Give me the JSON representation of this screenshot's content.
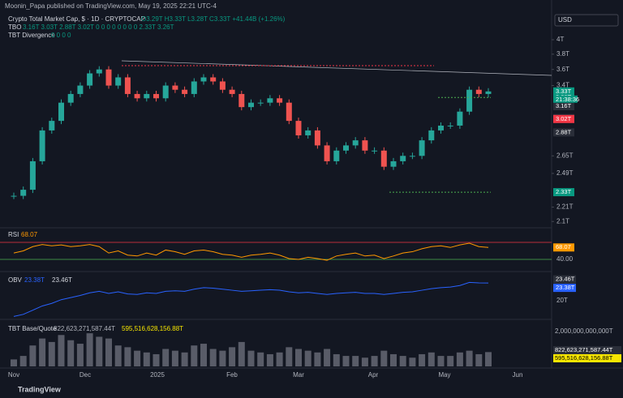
{
  "header": {
    "publisher": "Moonin_Papa published on TradingView.com, May 19, 2025 22:21 UTC-4",
    "symbol": "Crypto Total Market Cap, $ · 1D · CRYPTOCAP",
    "ohlc": "O3.29T H3.33T L3.28T C3.33T +41.44B (+1.26%)",
    "tbo_name": "TBO",
    "tbo_values": "3.16T 3.03T 2.88T 3.02T 0 0 0 0 0 0 0 0 2.33T 3.26T",
    "div_name": "TBT Divergence",
    "div_values": "0 0 0 0",
    "currency": "USD"
  },
  "price": {
    "ticks": [
      {
        "value": 4,
        "label": "4T"
      },
      {
        "value": 3.8,
        "label": "3.8T"
      },
      {
        "value": 3.6,
        "label": "3.6T"
      },
      {
        "value": 3.4,
        "label": "3.4T"
      },
      {
        "value": 2.65,
        "label": "2.65T"
      },
      {
        "value": 2.49,
        "label": "2.49T"
      },
      {
        "value": 2.21,
        "label": "2.21T"
      },
      {
        "value": 2.1,
        "label": "2.1T"
      }
    ],
    "closes": [
      2.3,
      2.35,
      2.6,
      2.9,
      3.0,
      3.2,
      3.3,
      3.4,
      3.55,
      3.6,
      3.4,
      3.5,
      3.3,
      3.25,
      3.3,
      3.25,
      3.4,
      3.35,
      3.3,
      3.45,
      3.5,
      3.45,
      3.35,
      3.3,
      3.15,
      3.2,
      3.2,
      3.25,
      3.2,
      3.0,
      2.85,
      2.9,
      2.75,
      2.6,
      2.7,
      2.75,
      2.8,
      2.7,
      2.7,
      2.55,
      2.6,
      2.65,
      2.65,
      2.8,
      2.9,
      2.95,
      2.95,
      3.1,
      3.35,
      3.3,
      3.33
    ],
    "labels": [
      {
        "value": 3.33,
        "label": "3.33T",
        "color": "#089981"
      },
      {
        "value": 3.26,
        "label": "3.26T",
        "color": "#089981"
      },
      {
        "value": 3.16,
        "label": "3.16T",
        "color": "#2a2e39"
      },
      {
        "value": 3.03,
        "label": "3.03T",
        "color": "#2a2e39"
      },
      {
        "value": 3.02,
        "label": "3.02T",
        "color": "#f23645"
      },
      {
        "value": 2.88,
        "label": "2.88T",
        "color": "#2a2e39"
      },
      {
        "value": 2.33,
        "label": "2.33T",
        "color": "#089981"
      }
    ],
    "countdown": "21:38:36"
  },
  "rsi": {
    "name": "RSI",
    "value_label": "68.07",
    "ticks": [
      {
        "value": 40,
        "label": "40.00"
      }
    ],
    "upper": 80,
    "values": [
      55,
      60,
      70,
      75,
      72,
      74,
      70,
      72,
      75,
      70,
      55,
      60,
      50,
      48,
      55,
      50,
      62,
      58,
      52,
      60,
      62,
      58,
      52,
      50,
      45,
      50,
      52,
      55,
      50,
      42,
      40,
      45,
      42,
      38,
      48,
      52,
      55,
      48,
      50,
      42,
      48,
      55,
      58,
      65,
      70,
      72,
      68,
      74,
      78,
      70,
      68.07
    ]
  },
  "obv": {
    "name": "OBV",
    "value1": "23.38T",
    "value2": "23.46T",
    "ticks": [
      {
        "value": 20,
        "label": "20T"
      }
    ],
    "values": [
      17.0,
      17.4,
      18.2,
      19.0,
      19.5,
      20.2,
      20.6,
      21.0,
      21.5,
      21.8,
      21.4,
      21.7,
      21.3,
      21.2,
      21.5,
      21.4,
      21.8,
      21.9,
      21.8,
      22.2,
      22.5,
      22.4,
      22.2,
      22.0,
      21.8,
      21.9,
      22.0,
      22.1,
      22.0,
      21.7,
      21.5,
      21.6,
      21.4,
      21.2,
      21.4,
      21.5,
      21.6,
      21.4,
      21.4,
      21.2,
      21.4,
      21.6,
      21.7,
      22.0,
      22.3,
      22.5,
      22.6,
      22.9,
      23.5,
      23.4,
      23.38
    ],
    "labels": [
      {
        "value": 23.46,
        "label": "23.46T",
        "color": "#2a2e39"
      },
      {
        "value": 23.38,
        "label": "23.38T",
        "color": "#2962ff"
      }
    ]
  },
  "volume": {
    "name": "TBT Base/Quote",
    "value1": "822,623,271,587.44T",
    "value2": "595,516,628,156.88T",
    "ticks": [
      {
        "value": 2000000000000.0,
        "label": "2,000,000,000,000T"
      }
    ],
    "values": [
      400000000000.0,
      600000000000.0,
      1200000000000.0,
      1600000000000.0,
      1400000000000.0,
      1800000000000.0,
      1500000000000.0,
      1300000000000.0,
      1900000000000.0,
      1700000000000.0,
      1600000000000.0,
      1200000000000.0,
      1100000000000.0,
      900000000000.0,
      800000000000.0,
      700000000000.0,
      1000000000000.0,
      900000000000.0,
      800000000000.0,
      1200000000000.0,
      1300000000000.0,
      1000000000000.0,
      900000000000.0,
      1100000000000.0,
      1400000000000.0,
      900000000000.0,
      800000000000.0,
      700000000000.0,
      800000000000.0,
      1100000000000.0,
      1000000000000.0,
      900000000000.0,
      800000000000.0,
      1000000000000.0,
      700000000000.0,
      600000000000.0,
      600000000000.0,
      500000000000.0,
      600000000000.0,
      900000000000.0,
      700000000000.0,
      600000000000.0,
      500000000000.0,
      700000000000.0,
      800000000000.0,
      600000000000.0,
      600000000000.0,
      800000000000.0,
      900000000000.0,
      700000000000.0,
      820000000000.0
    ],
    "labels": [
      {
        "value": 822623271587.44,
        "label": "822,623,271,587.44T",
        "color": "#2a2e39"
      },
      {
        "value": 595516628156.88,
        "label": "595,516,628,156.88T",
        "color": "#f7e600"
      }
    ]
  },
  "xaxis": [
    "Nov",
    "Dec",
    "2025",
    "Feb",
    "Mar",
    "Apr",
    "May",
    "Jun"
  ],
  "footer": "TradingView"
}
